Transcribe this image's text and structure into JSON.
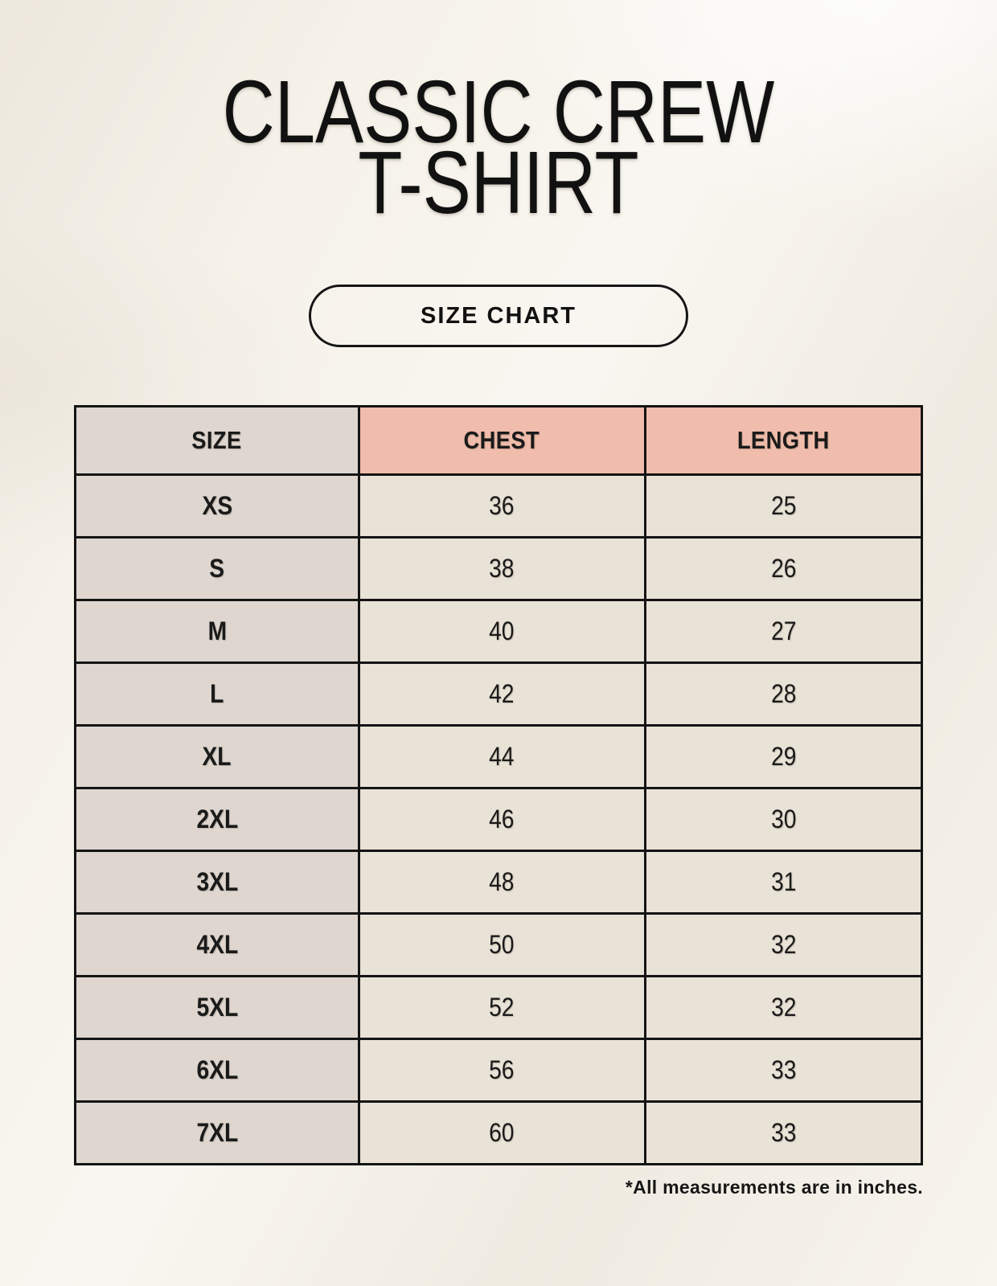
{
  "header": {
    "title_line1": "CLASSIC CREW",
    "title_line2": "T-SHIRT",
    "button_label": "SIZE CHART"
  },
  "table": {
    "headers": [
      "SIZE",
      "CHEST",
      "LENGTH"
    ],
    "rows": [
      [
        "XS",
        "36",
        "25"
      ],
      [
        "S",
        "38",
        "26"
      ],
      [
        "M",
        "40",
        "27"
      ],
      [
        "L",
        "42",
        "28"
      ],
      [
        "XL",
        "44",
        "29"
      ],
      [
        "2XL",
        "46",
        "30"
      ],
      [
        "3XL",
        "48",
        "31"
      ],
      [
        "4XL",
        "50",
        "32"
      ],
      [
        "5XL",
        "52",
        "32"
      ],
      [
        "6XL",
        "56",
        "33"
      ],
      [
        "7XL",
        "60",
        "33"
      ]
    ]
  },
  "footnote": "*All measurements are in inches.",
  "colors": {
    "background": "#f5f1e8",
    "header_accent": "#f0bcab",
    "size_column": "#ded6cf",
    "cell": "#e9e2d6",
    "border": "#141414",
    "text": "#1a1a1a"
  }
}
